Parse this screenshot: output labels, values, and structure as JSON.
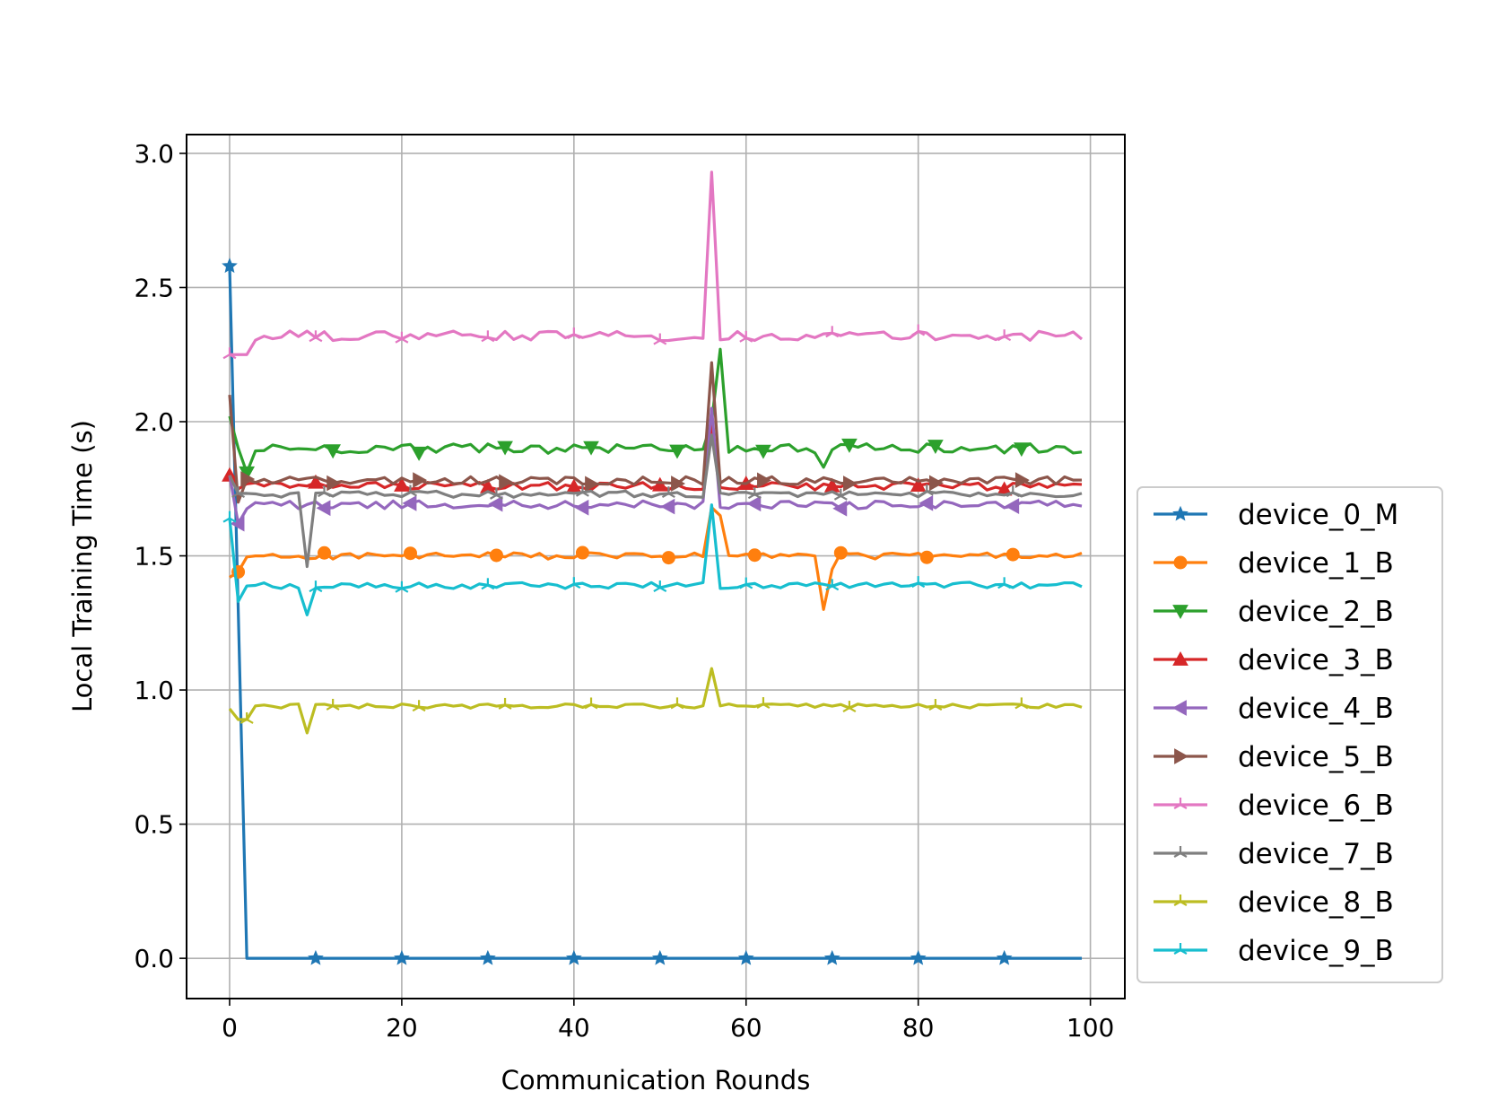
{
  "chart_data": {
    "type": "line",
    "title": "",
    "xlabel": "Communication Rounds",
    "ylabel": "Local Training Time (s)",
    "xlim": [
      -5,
      104
    ],
    "ylim": [
      -0.15,
      3.07
    ],
    "xticks": [
      0,
      20,
      40,
      60,
      80,
      100
    ],
    "yticks": [
      0.0,
      0.5,
      1.0,
      1.5,
      2.0,
      2.5,
      3.0
    ],
    "xtick_labels": [
      "0",
      "20",
      "40",
      "60",
      "80",
      "100"
    ],
    "ytick_labels": [
      "0.0",
      "0.5",
      "1.0",
      "1.5",
      "2.0",
      "2.5",
      "3.0"
    ],
    "grid": true,
    "legend_position": "outside-right-bottom",
    "series": [
      {
        "name": "device_0_M",
        "color": "#1f77b4",
        "marker": "star",
        "markevery": 10,
        "base": 0.0,
        "noise": 0.0,
        "spikes": [
          [
            0,
            2.58
          ],
          [
            1,
            1.3
          ]
        ],
        "sample": [
          2.58,
          0.0,
          0.0
        ]
      },
      {
        "name": "device_1_B",
        "color": "#ff7f0e",
        "marker": "circle",
        "markevery": 10,
        "base": 1.5,
        "noise": 0.012,
        "spikes": [
          [
            0,
            1.42
          ],
          [
            1,
            1.44
          ],
          [
            56,
            1.68
          ],
          [
            57,
            1.65
          ],
          [
            69,
            1.3
          ],
          [
            70,
            1.45
          ]
        ],
        "sample": [
          1.42,
          1.5,
          1.3
        ]
      },
      {
        "name": "device_2_B",
        "color": "#2ca02c",
        "marker": "triangle-down",
        "markevery": 10,
        "base": 1.9,
        "noise": 0.018,
        "spikes": [
          [
            0,
            2.02
          ],
          [
            2,
            1.81
          ],
          [
            56,
            2.0
          ],
          [
            57,
            2.27
          ],
          [
            69,
            1.83
          ]
        ],
        "sample": [
          2.02,
          1.9,
          2.27
        ]
      },
      {
        "name": "device_3_B",
        "color": "#d62728",
        "marker": "triangle-up",
        "markevery": 10,
        "base": 1.76,
        "noise": 0.015,
        "spikes": [
          [
            0,
            1.8
          ],
          [
            56,
            2.0
          ]
        ],
        "sample": [
          1.8,
          1.76,
          2.0
        ]
      },
      {
        "name": "device_4_B",
        "color": "#9467bd",
        "marker": "triangle-left",
        "markevery": 10,
        "base": 1.69,
        "noise": 0.015,
        "spikes": [
          [
            0,
            1.8
          ],
          [
            1,
            1.62
          ],
          [
            56,
            2.05
          ]
        ],
        "sample": [
          1.8,
          1.69,
          2.05
        ]
      },
      {
        "name": "device_5_B",
        "color": "#8c564b",
        "marker": "triangle-right",
        "markevery": 10,
        "base": 1.78,
        "noise": 0.015,
        "spikes": [
          [
            0,
            2.1
          ],
          [
            1,
            1.7
          ],
          [
            56,
            2.22
          ]
        ],
        "sample": [
          2.1,
          1.78,
          2.22
        ]
      },
      {
        "name": "device_6_B",
        "color": "#e377c2",
        "marker": "tri",
        "markevery": 10,
        "base": 2.32,
        "noise": 0.018,
        "spikes": [
          [
            0,
            2.25
          ],
          [
            1,
            2.25
          ],
          [
            2,
            2.25
          ],
          [
            56,
            2.93
          ]
        ],
        "sample": [
          2.25,
          2.32,
          2.93
        ]
      },
      {
        "name": "device_7_B",
        "color": "#7f7f7f",
        "marker": "tri",
        "markevery": 10,
        "base": 1.73,
        "noise": 0.012,
        "spikes": [
          [
            0,
            1.8
          ],
          [
            9,
            1.46
          ],
          [
            56,
            1.95
          ]
        ],
        "sample": [
          1.8,
          1.73,
          1.46
        ]
      },
      {
        "name": "device_8_B",
        "color": "#bcbd22",
        "marker": "tri",
        "markevery": 10,
        "base": 0.94,
        "noise": 0.008,
        "spikes": [
          [
            0,
            0.93
          ],
          [
            1,
            0.89
          ],
          [
            2,
            0.89
          ],
          [
            9,
            0.84
          ],
          [
            56,
            1.08
          ]
        ],
        "sample": [
          0.93,
          0.94,
          1.08
        ]
      },
      {
        "name": "device_9_B",
        "color": "#17becf",
        "marker": "tri",
        "markevery": 10,
        "base": 1.39,
        "noise": 0.012,
        "spikes": [
          [
            0,
            1.64
          ],
          [
            1,
            1.33
          ],
          [
            9,
            1.28
          ],
          [
            56,
            1.69
          ]
        ],
        "sample": [
          1.64,
          1.39,
          1.28
        ]
      }
    ]
  }
}
